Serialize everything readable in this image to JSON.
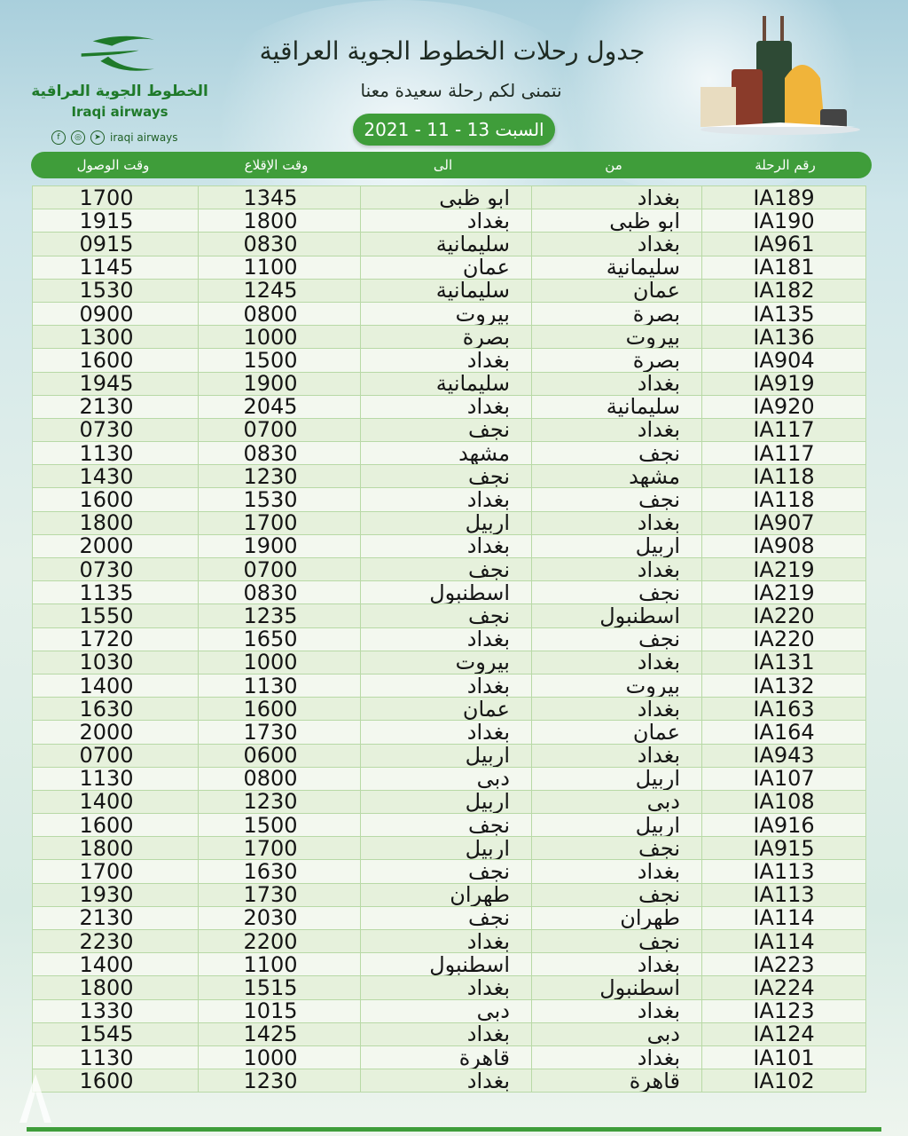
{
  "logo": {
    "arabic": "الخطوط الجوية العراقية",
    "english": "Iraqi airways"
  },
  "social": {
    "icons": [
      "facebook-icon",
      "instagram-icon",
      "telegram-icon"
    ],
    "handle": "iraqi airways"
  },
  "title": "جدول رحلات الخطوط الجوية العراقية",
  "subtitle": "نتمنى لكم رحلة سعيدة معنا",
  "date": "السبت 13 - 11 - 2021",
  "colors": {
    "accent": "#3f9d3a",
    "row_odd": "#e6f1dc",
    "row_even": "#f3f8ef"
  },
  "columns": {
    "flight": "رقم الرحلة",
    "from": "من",
    "to": "الى",
    "departure": "وقت الإقلاع",
    "arrival": "وقت الوصول"
  },
  "rows": [
    [
      "IA189",
      "بغداد",
      "ابو ظبى",
      "1345",
      "1700"
    ],
    [
      "IA190",
      "ابو ظبى",
      "بغداد",
      "1800",
      "1915"
    ],
    [
      "IA961",
      "بغداد",
      "سليمانية",
      "0830",
      "0915"
    ],
    [
      "IA181",
      "سليمانية",
      "عمان",
      "1100",
      "1145"
    ],
    [
      "IA182",
      "عمان",
      "سليمانية",
      "1245",
      "1530"
    ],
    [
      "IA135",
      "بصرة",
      "بيروت",
      "0800",
      "0900"
    ],
    [
      "IA136",
      "بيروت",
      "بصرة",
      "1000",
      "1300"
    ],
    [
      "IA904",
      "بصرة",
      "بغداد",
      "1500",
      "1600"
    ],
    [
      "IA919",
      "بغداد",
      "سليمانية",
      "1900",
      "1945"
    ],
    [
      "IA920",
      "سليمانية",
      "بغداد",
      "2045",
      "2130"
    ],
    [
      "IA117",
      "بغداد",
      "نجف",
      "0700",
      "0730"
    ],
    [
      "IA117",
      "نجف",
      "مشهد",
      "0830",
      "1130"
    ],
    [
      "IA118",
      "مشهد",
      "نجف",
      "1230",
      "1430"
    ],
    [
      "IA118",
      "نجف",
      "بغداد",
      "1530",
      "1600"
    ],
    [
      "IA907",
      "بغداد",
      "اربيل",
      "1700",
      "1800"
    ],
    [
      "IA908",
      "اربيل",
      "بغداد",
      "1900",
      "2000"
    ],
    [
      "IA219",
      "بغداد",
      "نجف",
      "0700",
      "0730"
    ],
    [
      "IA219",
      "نجف",
      "اسطنبول",
      "0830",
      "1135"
    ],
    [
      "IA220",
      "اسطنبول",
      "نجف",
      "1235",
      "1550"
    ],
    [
      "IA220",
      "نجف",
      "بغداد",
      "1650",
      "1720"
    ],
    [
      "IA131",
      "بغداد",
      "بيروت",
      "1000",
      "1030"
    ],
    [
      "IA132",
      "بيروت",
      "بغداد",
      "1130",
      "1400"
    ],
    [
      "IA163",
      "بغداد",
      "عمان",
      "1600",
      "1630"
    ],
    [
      "IA164",
      "عمان",
      "بغداد",
      "1730",
      "2000"
    ],
    [
      "IA943",
      "بغداد",
      "اربيل",
      "0600",
      "0700"
    ],
    [
      "IA107",
      "اربيل",
      "دبى",
      "0800",
      "1130"
    ],
    [
      "IA108",
      "دبى",
      "اربيل",
      "1230",
      "1400"
    ],
    [
      "IA916",
      "اربيل",
      "نجف",
      "1500",
      "1600"
    ],
    [
      "IA915",
      "نجف",
      "اربيل",
      "1700",
      "1800"
    ],
    [
      "IA113",
      "بغداد",
      "نجف",
      "1630",
      "1700"
    ],
    [
      "IA113",
      "نجف",
      "طهران",
      "1730",
      "1930"
    ],
    [
      "IA114",
      "طهران",
      "نجف",
      "2030",
      "2130"
    ],
    [
      "IA114",
      "نجف",
      "بغداد",
      "2200",
      "2230"
    ],
    [
      "IA223",
      "بغداد",
      "اسطنبول",
      "1100",
      "1400"
    ],
    [
      "IA224",
      "اسطنبول",
      "بغداد",
      "1515",
      "1800"
    ],
    [
      "IA123",
      "بغداد",
      "دبى",
      "1015",
      "1330"
    ],
    [
      "IA124",
      "دبى",
      "بغداد",
      "1425",
      "1545"
    ],
    [
      "IA101",
      "بغداد",
      "قاهرة",
      "1000",
      "1130"
    ],
    [
      "IA102",
      "قاهرة",
      "بغداد",
      "1230",
      "1600"
    ]
  ]
}
